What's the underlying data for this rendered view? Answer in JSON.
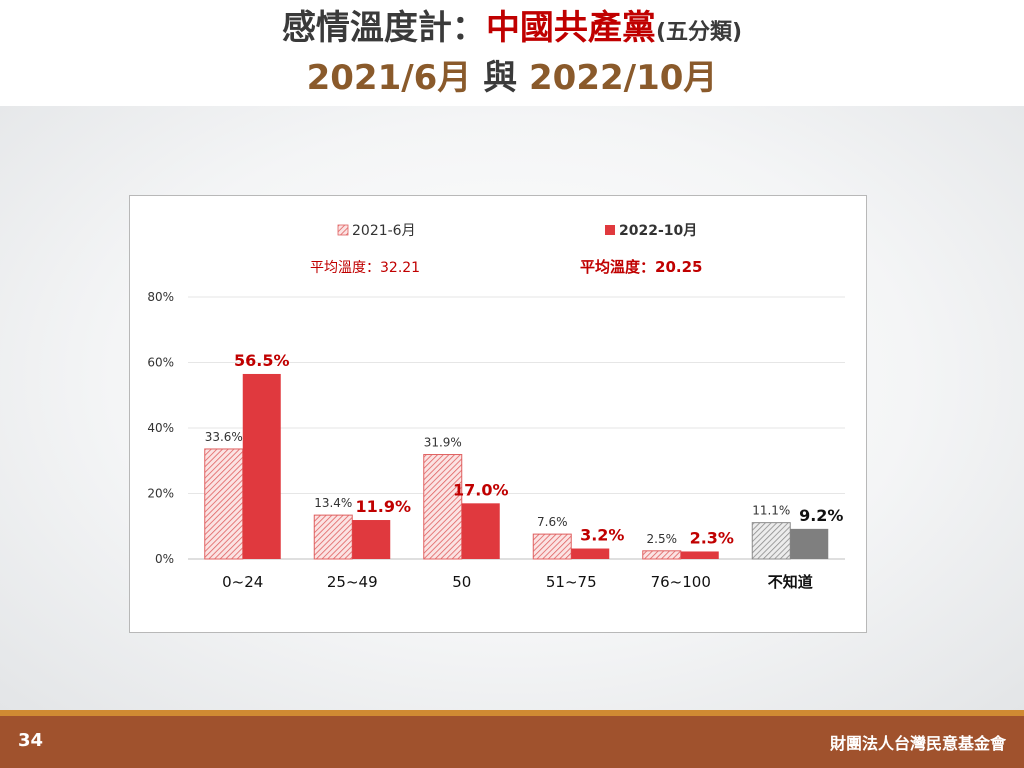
{
  "title": {
    "prefix": "感情溫度計：",
    "party": "中國共產黨",
    "suffix": "(五分類)",
    "date1": "2021/6月",
    "connector": "與",
    "date2": "2022/10月"
  },
  "footer": {
    "page": "34",
    "org": "財團法人台灣民意基金會"
  },
  "colors": {
    "red": "#e0393e",
    "hatch_red": "#e06060",
    "gray": "#7f7f7f",
    "hatch_gray": "#8c8c8c",
    "label_red": "#c00000",
    "title_brown": "#8a5a2b"
  },
  "chart_data": {
    "type": "bar",
    "categories": [
      "0~24",
      "25~49",
      "50",
      "51~75",
      "76~100",
      "不知道"
    ],
    "series": [
      {
        "name": "2021-6月",
        "values": [
          33.6,
          13.4,
          31.9,
          7.6,
          2.5,
          11.1
        ],
        "labels": [
          "33.6%",
          "13.4%",
          "31.9%",
          "7.6%",
          "2.5%",
          "11.1%"
        ]
      },
      {
        "name": "2022-10月",
        "values": [
          56.5,
          11.9,
          17.0,
          3.2,
          2.3,
          9.2
        ],
        "labels": [
          "56.5%",
          "11.9%",
          "17.0%",
          "3.2%",
          "2.3%",
          "9.2%"
        ]
      }
    ],
    "ylim": [
      0,
      80
    ],
    "yticks": [
      "0%",
      "20%",
      "40%",
      "60%",
      "80%"
    ],
    "ytick_values": [
      0,
      20,
      40,
      60,
      80
    ],
    "averages": [
      "平均溫度：32.21",
      "平均溫度：20.25"
    ],
    "legend_position": "top",
    "grid": true
  }
}
